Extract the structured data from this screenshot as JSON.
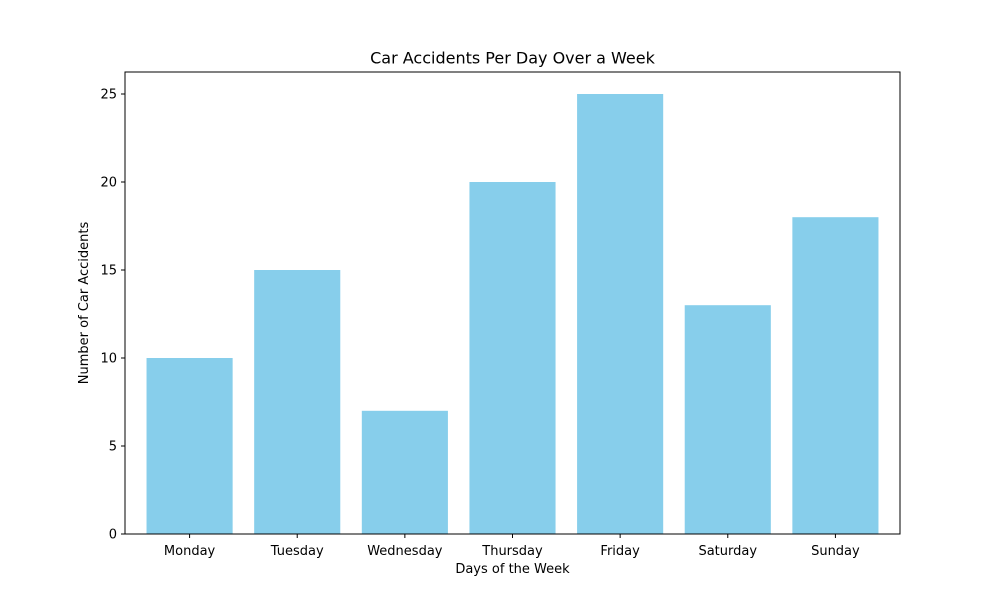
{
  "chart_data": {
    "type": "bar",
    "title": "Car Accidents Per Day Over a Week",
    "xlabel": "Days of the Week",
    "ylabel": "Number of Car Accidents",
    "categories": [
      "Monday",
      "Tuesday",
      "Wednesday",
      "Thursday",
      "Friday",
      "Saturday",
      "Sunday"
    ],
    "values": [
      10,
      15,
      7,
      20,
      25,
      13,
      18
    ],
    "ylim": [
      0,
      26.25
    ],
    "yticks": [
      "0",
      "5",
      "10",
      "15",
      "20",
      "25"
    ],
    "bar_color": "#87ceeb",
    "grid": false,
    "legend": "none"
  }
}
